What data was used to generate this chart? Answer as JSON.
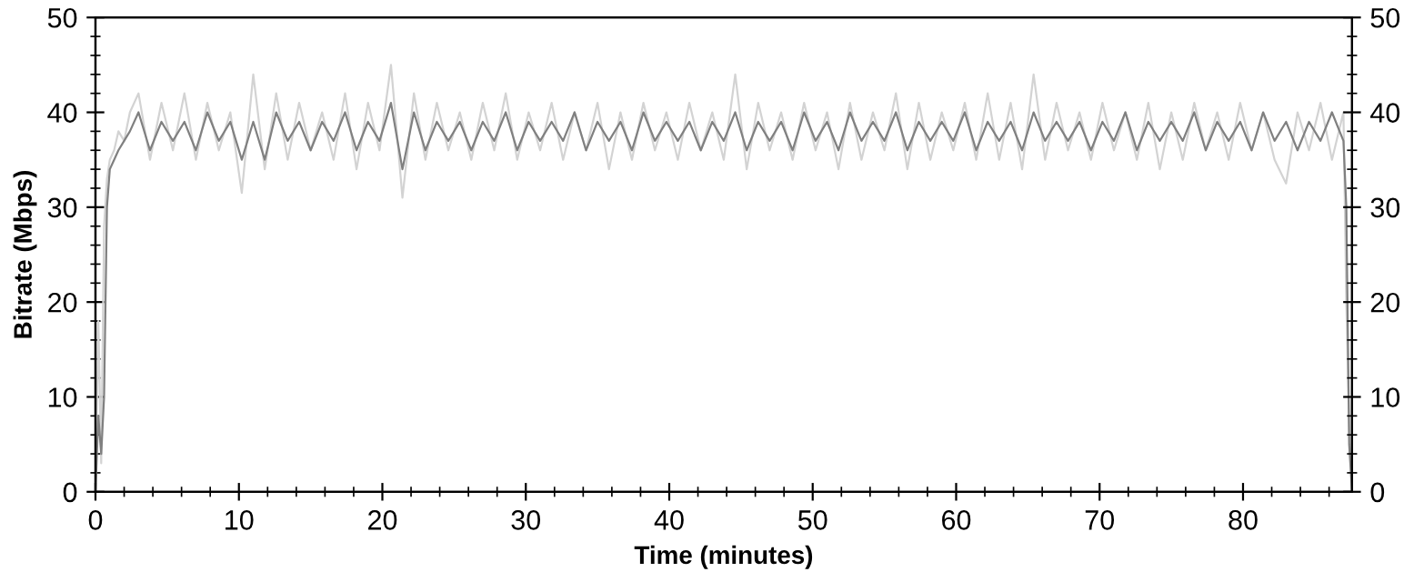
{
  "chart_data": {
    "type": "line",
    "xlabel": "Time (minutes)",
    "ylabel": "Bitrate (Mbps)",
    "xlim": [
      0,
      87.6
    ],
    "ylim": [
      0,
      50
    ],
    "y2lim": [
      0,
      50
    ],
    "xticks": [
      0,
      {
        "value": 2,
        "label": null
      },
      {
        "value": 4,
        "label": null
      },
      {
        "value": 6,
        "label": null
      },
      {
        "value": 8,
        "label": null
      },
      10,
      {
        "value": 12,
        "label": null
      },
      {
        "value": 14,
        "label": null
      },
      {
        "value": 16,
        "label": null
      },
      {
        "value": 18,
        "label": null
      },
      20,
      {
        "value": 22,
        "label": null
      },
      {
        "value": 24,
        "label": null
      },
      {
        "value": 26,
        "label": null
      },
      {
        "value": 28,
        "label": null
      },
      30,
      {
        "value": 32,
        "label": null
      },
      {
        "value": 34,
        "label": null
      },
      {
        "value": 36,
        "label": null
      },
      {
        "value": 38,
        "label": null
      },
      40,
      {
        "value": 42,
        "label": null
      },
      {
        "value": 44,
        "label": null
      },
      {
        "value": 46,
        "label": null
      },
      {
        "value": 48,
        "label": null
      },
      50,
      {
        "value": 52,
        "label": null
      },
      {
        "value": 54,
        "label": null
      },
      {
        "value": 56,
        "label": null
      },
      {
        "value": 58,
        "label": null
      },
      60,
      {
        "value": 62,
        "label": null
      },
      {
        "value": 64,
        "label": null
      },
      {
        "value": 66,
        "label": null
      },
      {
        "value": 68,
        "label": null
      },
      70,
      {
        "value": 72,
        "label": null
      },
      {
        "value": 74,
        "label": null
      },
      {
        "value": 76,
        "label": null
      },
      {
        "value": 78,
        "label": null
      },
      80,
      {
        "value": 82,
        "label": null
      },
      {
        "value": 84,
        "label": null
      },
      {
        "value": 86,
        "label": null
      }
    ],
    "yticks": [
      0,
      {
        "value": 2,
        "label": null
      },
      {
        "value": 4,
        "label": null
      },
      {
        "value": 6,
        "label": null
      },
      {
        "value": 8,
        "label": null
      },
      10,
      {
        "value": 12,
        "label": null
      },
      {
        "value": 14,
        "label": null
      },
      {
        "value": 16,
        "label": null
      },
      {
        "value": 18,
        "label": null
      },
      20,
      {
        "value": 22,
        "label": null
      },
      {
        "value": 24,
        "label": null
      },
      {
        "value": 26,
        "label": null
      },
      {
        "value": 28,
        "label": null
      },
      30,
      {
        "value": 32,
        "label": null
      },
      {
        "value": 34,
        "label": null
      },
      {
        "value": 36,
        "label": null
      },
      {
        "value": 38,
        "label": null
      },
      40,
      {
        "value": 42,
        "label": null
      },
      {
        "value": 44,
        "label": null
      },
      {
        "value": 46,
        "label": null
      },
      {
        "value": 48,
        "label": null
      },
      50
    ],
    "y2ticks": [
      0,
      {
        "value": 2,
        "label": null
      },
      {
        "value": 4,
        "label": null
      },
      {
        "value": 6,
        "label": null
      },
      {
        "value": 8,
        "label": null
      },
      10,
      {
        "value": 12,
        "label": null
      },
      {
        "value": 14,
        "label": null
      },
      {
        "value": 16,
        "label": null
      },
      {
        "value": 18,
        "label": null
      },
      20,
      {
        "value": 22,
        "label": null
      },
      {
        "value": 24,
        "label": null
      },
      {
        "value": 26,
        "label": null
      },
      {
        "value": 28,
        "label": null
      },
      30,
      {
        "value": 32,
        "label": null
      },
      {
        "value": 34,
        "label": null
      },
      {
        "value": 36,
        "label": null
      },
      {
        "value": 38,
        "label": null
      },
      40,
      {
        "value": 42,
        "label": null
      },
      {
        "value": 44,
        "label": null
      },
      {
        "value": 46,
        "label": null
      },
      {
        "value": 48,
        "label": null
      },
      50
    ],
    "grid": false,
    "legend": false,
    "marker": "none",
    "line_style": "solid",
    "series": [
      {
        "color": "#d3d3d3",
        "x": [
          0,
          0.2,
          0.4,
          0.6,
          0.8,
          1.0,
          1.3,
          1.6,
          2.0,
          2.4,
          3.0,
          3.8,
          4.6,
          5.4,
          6.2,
          7.0,
          7.8,
          8.6,
          9.4,
          10.2,
          11.0,
          11.8,
          12.6,
          13.4,
          14.2,
          15.0,
          15.8,
          16.6,
          17.4,
          18.2,
          19.0,
          19.8,
          20.6,
          21.4,
          22.2,
          23.0,
          23.8,
          24.6,
          25.4,
          26.2,
          27.0,
          27.8,
          28.6,
          29.4,
          30.2,
          31.0,
          31.8,
          32.6,
          33.4,
          34.2,
          35.0,
          35.8,
          36.6,
          37.4,
          38.2,
          39.0,
          39.8,
          40.6,
          41.4,
          42.2,
          43.0,
          43.8,
          44.6,
          45.4,
          46.2,
          47.0,
          47.8,
          48.6,
          49.4,
          50.2,
          51.0,
          51.8,
          52.6,
          53.4,
          54.2,
          55.0,
          55.8,
          56.6,
          57.4,
          58.2,
          59.0,
          59.8,
          60.6,
          61.4,
          62.2,
          63.0,
          63.8,
          64.6,
          65.4,
          66.2,
          67.0,
          67.8,
          68.6,
          69.4,
          70.2,
          71.0,
          71.8,
          72.6,
          73.4,
          74.2,
          75.0,
          75.8,
          76.6,
          77.4,
          78.2,
          79.0,
          79.8,
          80.6,
          81.4,
          82.2,
          83.0,
          83.8,
          84.6,
          85.4,
          86.2,
          87.0,
          87.2,
          87.4,
          87.6
        ],
        "values": [
          0,
          18,
          3,
          28,
          33,
          35,
          36,
          38,
          37,
          40,
          42,
          35,
          41,
          36,
          42,
          35,
          41,
          36,
          40,
          31.5,
          44,
          34,
          42,
          35,
          41,
          36,
          40,
          35,
          42,
          34,
          41,
          36,
          45,
          31,
          42,
          35,
          41,
          36,
          40,
          35,
          41,
          36,
          42,
          35,
          40,
          36,
          41,
          35,
          40,
          36,
          41,
          34,
          40,
          35,
          41,
          36,
          40,
          35,
          41,
          36,
          40,
          35,
          44,
          34,
          41,
          36,
          40,
          35,
          41,
          36,
          40,
          34,
          41,
          35,
          40,
          36,
          42,
          34,
          41,
          35,
          40,
          36,
          41,
          35,
          42,
          35,
          41,
          34,
          44,
          35,
          41,
          36,
          40,
          35,
          41,
          36,
          40,
          35,
          41,
          34,
          40,
          35,
          41,
          36,
          40,
          35,
          41,
          36,
          40,
          35,
          32.5,
          40,
          36,
          41,
          35,
          40,
          20,
          7,
          0
        ]
      },
      {
        "color": "#808080",
        "x": [
          0,
          0.2,
          0.4,
          0.6,
          0.8,
          1.0,
          1.3,
          1.6,
          2.0,
          2.4,
          3.0,
          3.8,
          4.6,
          5.4,
          6.2,
          7.0,
          7.8,
          8.6,
          9.4,
          10.2,
          11.0,
          11.8,
          12.6,
          13.4,
          14.2,
          15.0,
          15.8,
          16.6,
          17.4,
          18.2,
          19.0,
          19.8,
          20.6,
          21.4,
          22.2,
          23.0,
          23.8,
          24.6,
          25.4,
          26.2,
          27.0,
          27.8,
          28.6,
          29.4,
          30.2,
          31.0,
          31.8,
          32.6,
          33.4,
          34.2,
          35.0,
          35.8,
          36.6,
          37.4,
          38.2,
          39.0,
          39.8,
          40.6,
          41.4,
          42.2,
          43.0,
          43.8,
          44.6,
          45.4,
          46.2,
          47.0,
          47.8,
          48.6,
          49.4,
          50.2,
          51.0,
          51.8,
          52.6,
          53.4,
          54.2,
          55.0,
          55.8,
          56.6,
          57.4,
          58.2,
          59.0,
          59.8,
          60.6,
          61.4,
          62.2,
          63.0,
          63.8,
          64.6,
          65.4,
          66.2,
          67.0,
          67.8,
          68.6,
          69.4,
          70.2,
          71.0,
          71.8,
          72.6,
          73.4,
          74.2,
          75.0,
          75.8,
          76.6,
          77.4,
          78.2,
          79.0,
          79.8,
          80.6,
          81.4,
          82.2,
          83.0,
          83.8,
          84.6,
          85.4,
          86.2,
          87.0,
          87.2,
          87.4,
          87.6
        ],
        "values": [
          0,
          8,
          4,
          10,
          30,
          34,
          35,
          36,
          37,
          38,
          40,
          36,
          39,
          37,
          39,
          36,
          40,
          37,
          39,
          35,
          39,
          35,
          40,
          37,
          39,
          36,
          39,
          37,
          40,
          36,
          39,
          37,
          41,
          34,
          40,
          36,
          39,
          37,
          39,
          36,
          39,
          37,
          40,
          36,
          39,
          37,
          39,
          37,
          40,
          36,
          39,
          37,
          39,
          36,
          40,
          37,
          39,
          37,
          39,
          36,
          39,
          37,
          40,
          36,
          39,
          37,
          39,
          36,
          40,
          37,
          39,
          36,
          40,
          37,
          39,
          37,
          40,
          36,
          39,
          37,
          39,
          37,
          40,
          36,
          39,
          37,
          39,
          36,
          40,
          37,
          39,
          37,
          39,
          36,
          39,
          37,
          40,
          36,
          39,
          37,
          39,
          37,
          40,
          36,
          39,
          37,
          39,
          36,
          40,
          37,
          39,
          36,
          39,
          37,
          40,
          37,
          30,
          5,
          0
        ]
      }
    ]
  }
}
